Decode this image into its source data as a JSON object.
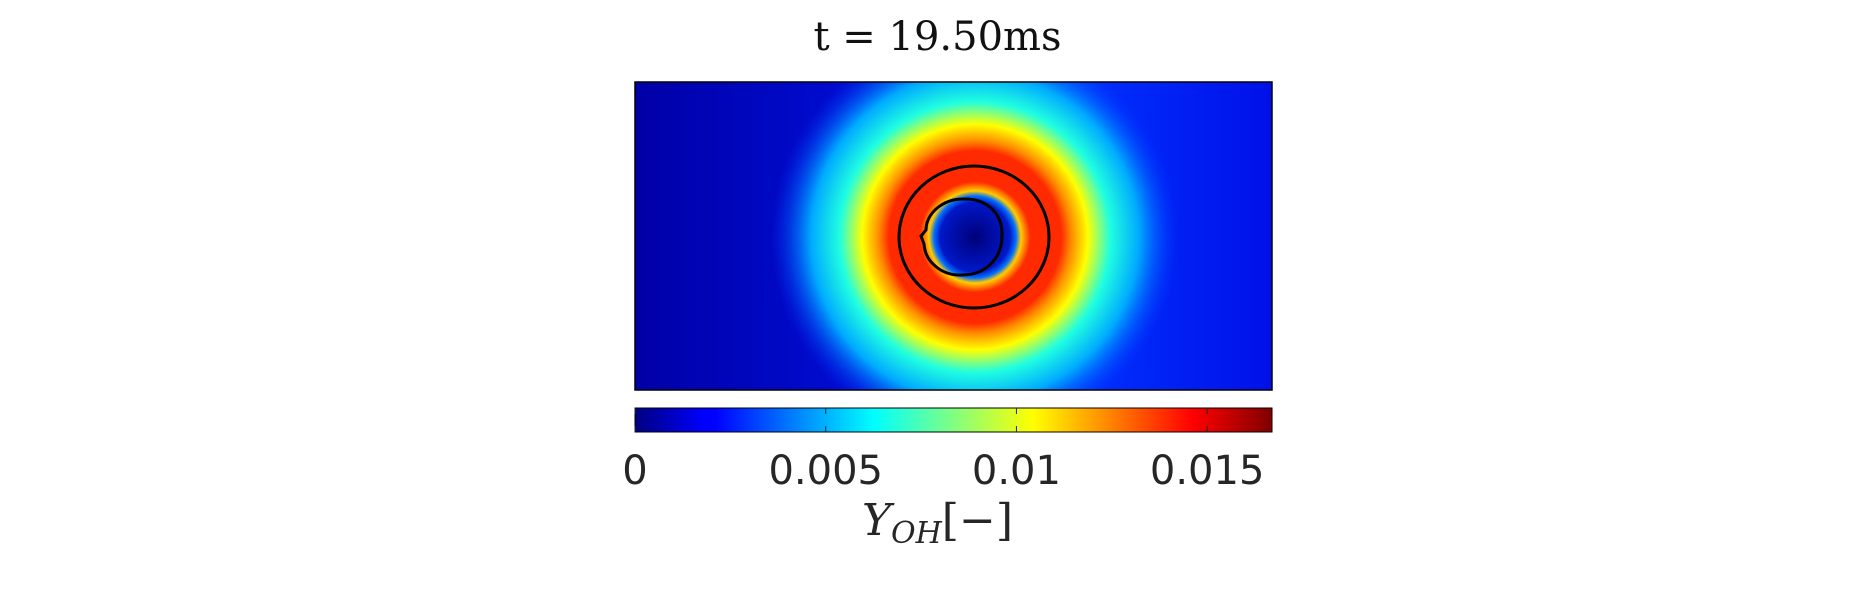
{
  "chart_data": {
    "type": "heatmap",
    "title": "t = 19.50ms",
    "field": "Y_OH",
    "colormap": "jet",
    "colorbar": {
      "label_symbol": "Y",
      "label_subscript": "OH",
      "label_units": "[−]",
      "range": [
        0,
        0.0167
      ],
      "ticks": [
        0,
        0.005,
        0.01,
        0.015
      ],
      "tick_labels": [
        "0",
        "0.005",
        "0.01",
        "0.015"
      ],
      "position": "bottom"
    },
    "contours": 2
  }
}
